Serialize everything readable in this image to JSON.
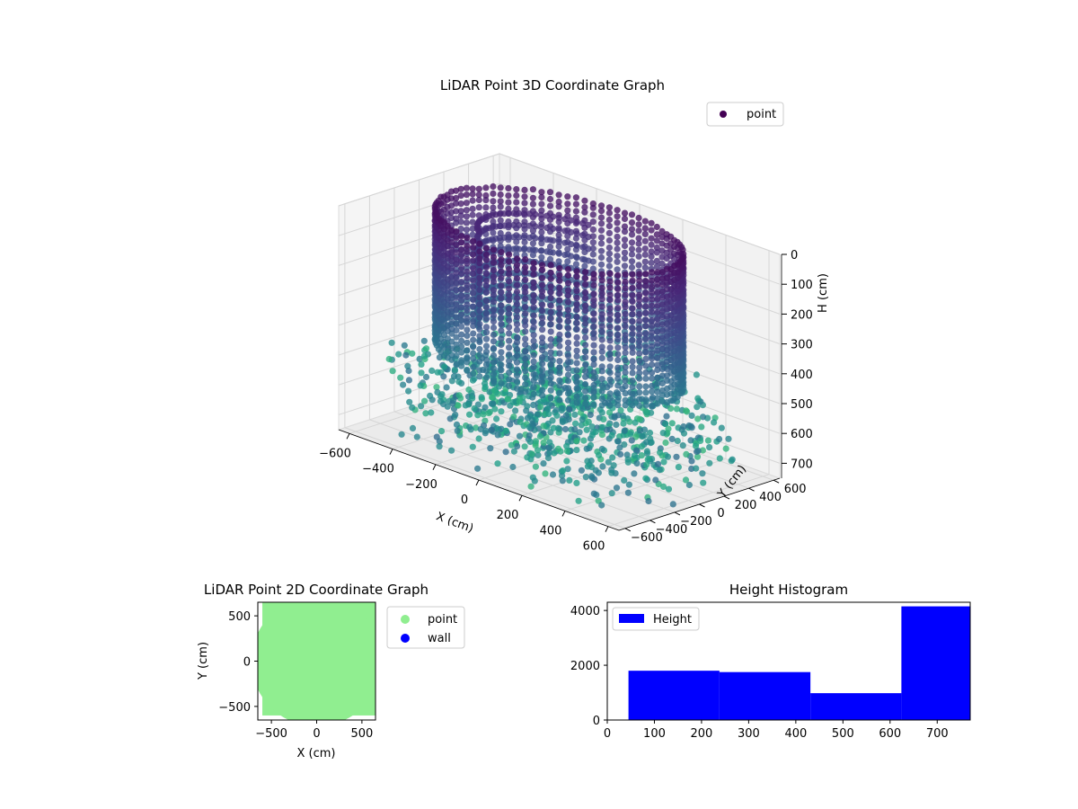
{
  "figure": {
    "background": "#ffffff"
  },
  "chart_data": [
    {
      "type": "scatter",
      "subtype": "3d",
      "title": "LiDAR Point 3D Coordinate Graph",
      "xlabel": "X (cm)",
      "ylabel": "Y (cm)",
      "zlabel": "H (cm)",
      "xlim": [
        -650,
        650
      ],
      "ylim": [
        -650,
        650
      ],
      "zlim": [
        0,
        750
      ],
      "z_inverted": true,
      "x_ticks": [
        -600,
        -400,
        -200,
        0,
        200,
        400,
        600
      ],
      "x_tick_labels": [
        "−600",
        "−400",
        "−200",
        "0",
        "200",
        "400",
        "600"
      ],
      "y_ticks": [
        -600,
        -400,
        -200,
        0,
        200,
        400,
        600
      ],
      "y_tick_labels": [
        "−600",
        "−400",
        "−200",
        "0",
        "200",
        "400",
        "600"
      ],
      "z_ticks": [
        0,
        100,
        200,
        300,
        400,
        500,
        600,
        700
      ],
      "z_tick_labels": [
        "0",
        "100",
        "200",
        "300",
        "400",
        "500",
        "600",
        "700"
      ],
      "legend": {
        "entries": [
          "point"
        ],
        "placement": "upper-right"
      },
      "colormap": "viridis",
      "marker_colors": {
        "high": "#440154",
        "mid": "#31688e",
        "low": "#35b779"
      },
      "series": [
        {
          "name": "point",
          "description_data": {
            "ring_radius_cm": 500,
            "ring_height_range_cm": [
              0,
              450
            ],
            "inner_partial_arc": true,
            "floor_scatter_radius_range_cm": [
              0,
              700
            ]
          }
        }
      ],
      "grid": true
    },
    {
      "type": "scatter",
      "title": "LiDAR Point 2D Coordinate Graph",
      "xlabel": "X (cm)",
      "ylabel": "Y (cm)",
      "xlim": [
        -650,
        650
      ],
      "ylim": [
        -650,
        650
      ],
      "x_ticks": [
        -500,
        0,
        500
      ],
      "x_tick_labels": [
        "−500",
        "0",
        "500"
      ],
      "y_ticks": [
        -500,
        0,
        500
      ],
      "y_tick_labels": [
        "−500",
        "0",
        "500"
      ],
      "legend": {
        "entries": [
          "point",
          "wall"
        ],
        "placement": "outside-right"
      },
      "series": [
        {
          "name": "point",
          "color": "#90ee90"
        },
        {
          "name": "wall",
          "color": "#0000ff"
        }
      ],
      "grid": false
    },
    {
      "type": "bar",
      "subtype": "histogram",
      "title": "Height Histogram",
      "xlim": [
        0,
        770
      ],
      "ylim": [
        0,
        4300
      ],
      "x_ticks": [
        0,
        100,
        200,
        300,
        400,
        500,
        600,
        700
      ],
      "x_tick_labels": [
        "0",
        "100",
        "200",
        "300",
        "400",
        "500",
        "600",
        "700"
      ],
      "y_ticks": [
        0,
        2000,
        4000
      ],
      "y_tick_labels": [
        "0",
        "2000",
        "4000"
      ],
      "legend": {
        "entries": [
          "Height"
        ],
        "placement": "upper-left"
      },
      "color": "#0000ff",
      "series": [
        {
          "name": "Height",
          "bins": [
            {
              "start": 45,
              "end": 238,
              "count": 1800
            },
            {
              "start": 238,
              "end": 431,
              "count": 1750
            },
            {
              "start": 431,
              "end": 624,
              "count": 980
            },
            {
              "start": 624,
              "end": 770,
              "count": 4150
            }
          ]
        }
      ],
      "grid": false
    }
  ]
}
